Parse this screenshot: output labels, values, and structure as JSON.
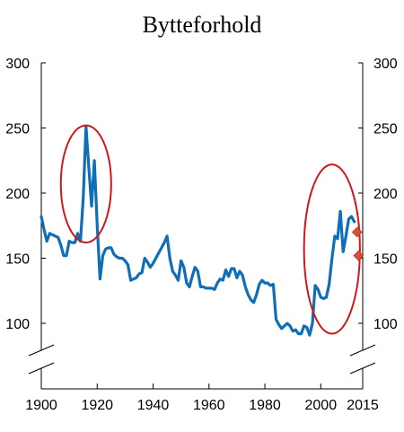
{
  "chart_data": {
    "type": "line",
    "title": "Bytteforhold",
    "xlabel": "",
    "ylabel": "",
    "xlim": [
      1900,
      2015
    ],
    "ylim": [
      80,
      300
    ],
    "axis_break": "bottom of both y-axes",
    "x_ticks": [
      "1900",
      "1920",
      "1940",
      "1960",
      "1980",
      "2000",
      "2015"
    ],
    "y_ticks_left": [
      "300",
      "250",
      "200",
      "150",
      "100"
    ],
    "y_ticks_right": [
      "300",
      "250",
      "200",
      "150",
      "100"
    ],
    "grid": false,
    "colors": {
      "line": "#0f6eb8",
      "ellipse": "#cc1a1a",
      "marker": "#d94b3a"
    },
    "series": [
      {
        "x": [
          1900,
          1901,
          1902,
          1903,
          1904,
          1905,
          1906,
          1907,
          1908,
          1909,
          1910,
          1911,
          1912,
          1913,
          1914,
          1915,
          1916,
          1917,
          1918,
          1919,
          1920,
          1921,
          1922,
          1923,
          1924,
          1925,
          1926,
          1927,
          1928,
          1929,
          1930,
          1931,
          1932,
          1933,
          1934,
          1935,
          1936,
          1937,
          1938,
          1939,
          1940,
          1941,
          1942,
          1943,
          1944,
          1945,
          1946,
          1947,
          1948,
          1949,
          1950,
          1951,
          1952,
          1953,
          1954,
          1955,
          1956,
          1957,
          1958,
          1959,
          1960,
          1961,
          1962,
          1963,
          1964,
          1965,
          1966,
          1967,
          1968,
          1969,
          1970,
          1971,
          1972,
          1973,
          1974,
          1975,
          1976,
          1977,
          1978,
          1979,
          1980,
          1981,
          1982,
          1983,
          1984,
          1985,
          1986,
          1987,
          1988,
          1989,
          1990,
          1991,
          1992,
          1993,
          1994,
          1995,
          1996,
          1997,
          1998,
          1999,
          2000,
          2001,
          2002,
          2003,
          2004,
          2005,
          2006,
          2007,
          2008,
          2009,
          2010,
          2011,
          2012
        ],
        "values": [
          182,
          172,
          163,
          169,
          168,
          167,
          166,
          160,
          152,
          152,
          163,
          162,
          162,
          169,
          163,
          196,
          251,
          220,
          190,
          225,
          175,
          134,
          152,
          157,
          158,
          158,
          153,
          151,
          150,
          150,
          148,
          145,
          133,
          134,
          135,
          138,
          139,
          150,
          147,
          143,
          146,
          150,
          154,
          158,
          162,
          167,
          150,
          140,
          137,
          133,
          148,
          143,
          131,
          128,
          136,
          143,
          140,
          128,
          128,
          127,
          127,
          127,
          126,
          131,
          134,
          133,
          141,
          136,
          142,
          142,
          135,
          140,
          137,
          128,
          122,
          118,
          116,
          122,
          130,
          133,
          131,
          131,
          129,
          130,
          103,
          99,
          96,
          98,
          100,
          98,
          94,
          95,
          92,
          92,
          98,
          97,
          91,
          100,
          129,
          126,
          120,
          119,
          120,
          130,
          150,
          167,
          165,
          186,
          155,
          167,
          180,
          182,
          178
        ]
      }
    ],
    "markers": [
      {
        "x": 2013,
        "y": 170
      },
      {
        "x": 2013.5,
        "y": 152
      }
    ],
    "annotations": [
      {
        "shape": "ellipse",
        "cx": 1916,
        "cy": 207,
        "rx": 9,
        "ry": 45
      },
      {
        "shape": "ellipse",
        "cx": 2004,
        "cy": 157,
        "rx": 10,
        "ry": 65
      }
    ]
  }
}
